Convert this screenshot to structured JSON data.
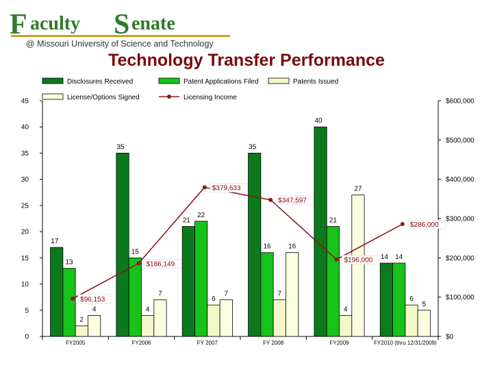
{
  "header": {
    "logo_big_f": "F",
    "logo_word1": "aculty",
    "logo_big_s": "S",
    "logo_word2": "enate",
    "logo_sub": "@ Missouri University of Science and Technology"
  },
  "colors": {
    "disclosures": "#0b7a1c",
    "applications": "#18c21a",
    "patents": "#f4f8c8",
    "license": "#fcfee0",
    "income": "#8b1a1a",
    "title": "#7a0a0a",
    "logo_green": "#2f7a2a",
    "logo_gold": "#c9a21d"
  },
  "chart_data": {
    "type": "bar",
    "title": "Technology Transfer Performance",
    "categories": [
      "FY2005",
      "FY2006",
      "FY 2007",
      "FY 2008",
      "FY2009",
      "FY2010 (thru 12/31/2009)"
    ],
    "ylim": [
      0,
      45
    ],
    "yticks": [
      "0",
      "5",
      "10",
      "15",
      "20",
      "25",
      "30",
      "35",
      "40",
      "45"
    ],
    "y2lim": [
      0,
      600000
    ],
    "y2ticks": [
      "$0",
      "$100,000",
      "$200,000",
      "$300,000",
      "$400,000",
      "$500,000",
      "$600,000"
    ],
    "series": [
      {
        "name": "Disclosures Received",
        "values": [
          17,
          35,
          21,
          35,
          40,
          14
        ]
      },
      {
        "name": "Patent Applications Filed",
        "values": [
          13,
          15,
          22,
          16,
          21,
          14
        ]
      },
      {
        "name": "Patents Issued",
        "values": [
          2,
          4,
          6,
          7,
          4,
          6
        ]
      },
      {
        "name": "License/Options Signed",
        "values": [
          4,
          7,
          7,
          16,
          27,
          5
        ]
      }
    ],
    "line": {
      "name": "Licensing Income",
      "values": [
        96153,
        186149,
        379633,
        347597,
        196000,
        286000
      ],
      "labels": [
        "$96,153",
        "$186,149",
        "$379,633",
        "$347,597",
        "$196,000",
        "$286,000"
      ]
    },
    "legend_position": "top",
    "grid": false
  }
}
